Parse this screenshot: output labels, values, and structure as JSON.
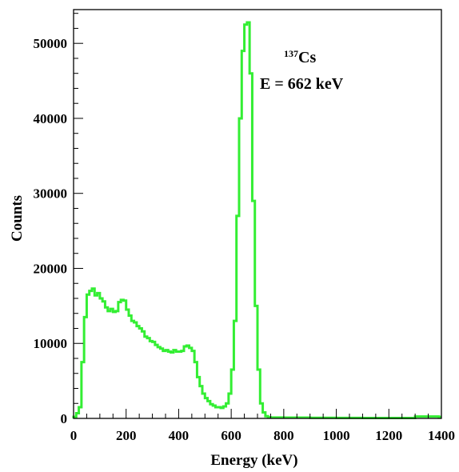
{
  "chart_data": {
    "type": "line",
    "xlabel": "Energy (keV)",
    "ylabel": "Counts",
    "xlim": [
      0,
      1400
    ],
    "ylim": [
      0,
      54500
    ],
    "x_ticks": [
      0,
      200,
      400,
      600,
      800,
      1000,
      1200,
      1400
    ],
    "y_ticks": [
      0,
      10000,
      20000,
      30000,
      40000,
      50000
    ],
    "grid": false,
    "line_color": "#33ee33",
    "annotation": {
      "isotope_mass": "137",
      "isotope_symbol": "Cs",
      "energy_label": "E = 662 keV"
    },
    "series": [
      {
        "bin_width": 10,
        "x": [
          0,
          10,
          20,
          30,
          40,
          50,
          60,
          70,
          80,
          90,
          100,
          110,
          120,
          130,
          140,
          150,
          160,
          170,
          180,
          190,
          200,
          210,
          220,
          230,
          240,
          250,
          260,
          270,
          280,
          290,
          300,
          310,
          320,
          330,
          340,
          350,
          360,
          370,
          380,
          390,
          400,
          410,
          420,
          430,
          440,
          450,
          460,
          470,
          480,
          490,
          500,
          510,
          520,
          530,
          540,
          550,
          560,
          570,
          580,
          590,
          600,
          610,
          620,
          630,
          640,
          650,
          660,
          670,
          680,
          690,
          700,
          710,
          720,
          730,
          740,
          750,
          800,
          900,
          1000,
          1100,
          1200,
          1300,
          1390
        ],
        "y": [
          200,
          700,
          1500,
          7500,
          13500,
          16500,
          17000,
          17300,
          16400,
          16700,
          16000,
          15600,
          14800,
          14300,
          14600,
          14200,
          14300,
          15500,
          15800,
          15700,
          14500,
          13700,
          13000,
          12800,
          12300,
          12000,
          11600,
          10900,
          10700,
          10300,
          10200,
          9800,
          9500,
          9300,
          9000,
          9100,
          8900,
          8800,
          9100,
          8900,
          8900,
          9000,
          9600,
          9700,
          9400,
          9000,
          7500,
          5500,
          4300,
          3300,
          2700,
          2300,
          1900,
          1700,
          1500,
          1500,
          1400,
          1600,
          2000,
          3300,
          6500,
          13000,
          27000,
          40000,
          49000,
          52500,
          52800,
          46000,
          29000,
          15000,
          6500,
          2000,
          800,
          300,
          150,
          120,
          100,
          80,
          70,
          60,
          60,
          250,
          200
        ]
      }
    ]
  }
}
